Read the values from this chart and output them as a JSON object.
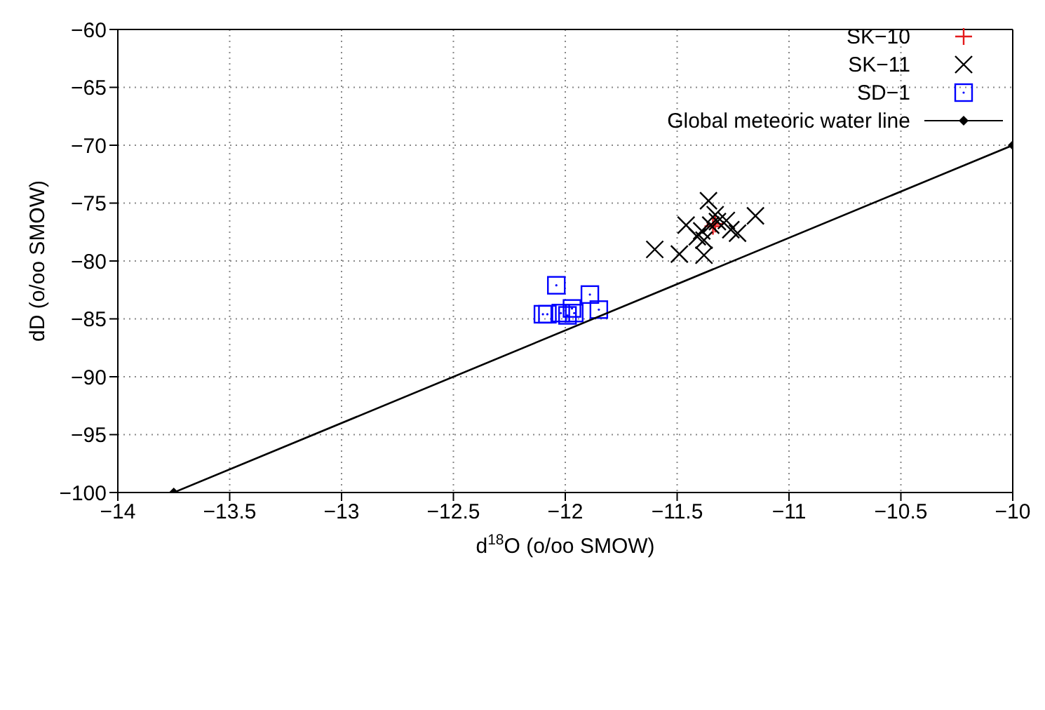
{
  "chart_data": {
    "type": "scatter",
    "xlabel": "d$^{18}$O (o/oo SMOW)",
    "ylabel": "dD (o/oo SMOW)",
    "xlim": [
      -14,
      -10
    ],
    "xticks": [
      -14,
      -13.5,
      -13,
      -12.5,
      -12,
      -11.5,
      -11,
      -10.5,
      -10
    ],
    "ylim": [
      -100,
      -60
    ],
    "yticks": [
      -100,
      -95,
      -90,
      -85,
      -80,
      -75,
      -70,
      -65,
      -60
    ],
    "grid": true,
    "legend": "top right",
    "series": [
      {
        "name": "SK−10",
        "marker": "plus",
        "color": "#e41a1c",
        "x": [
          -11.34,
          -11.33
        ],
        "values": [
          -77.0,
          -76.8
        ]
      },
      {
        "name": "SK−11",
        "marker": "cross",
        "color": "#000000",
        "x": [
          -11.36,
          -11.15,
          -11.46,
          -11.33,
          -11.28,
          -11.26,
          -11.23,
          -11.39,
          -11.38,
          -11.35,
          -11.32,
          -11.6,
          -11.49,
          -11.38,
          -11.41
        ],
        "values": [
          -74.8,
          -76.1,
          -76.9,
          -76.0,
          -76.5,
          -77.3,
          -77.6,
          -77.4,
          -78.2,
          -76.9,
          -76.6,
          -79.0,
          -79.4,
          -79.5,
          -77.9
        ]
      },
      {
        "name": "SD−1",
        "marker": "square",
        "color": "#0000ff",
        "x": [
          -12.04,
          -11.89,
          -11.97,
          -11.85,
          -12.1,
          -12.08,
          -12.02,
          -11.96,
          -11.99
        ],
        "values": [
          -82.1,
          -82.9,
          -84.1,
          -84.2,
          -84.6,
          -84.6,
          -84.5,
          -84.5,
          -84.7
        ]
      },
      {
        "name": "Global meteoric water line",
        "type": "line",
        "marker": "diamond",
        "line_style": "solid",
        "color": "#000000",
        "x": [
          -13.75,
          -10
        ],
        "values": [
          -100,
          -70
        ]
      }
    ]
  }
}
